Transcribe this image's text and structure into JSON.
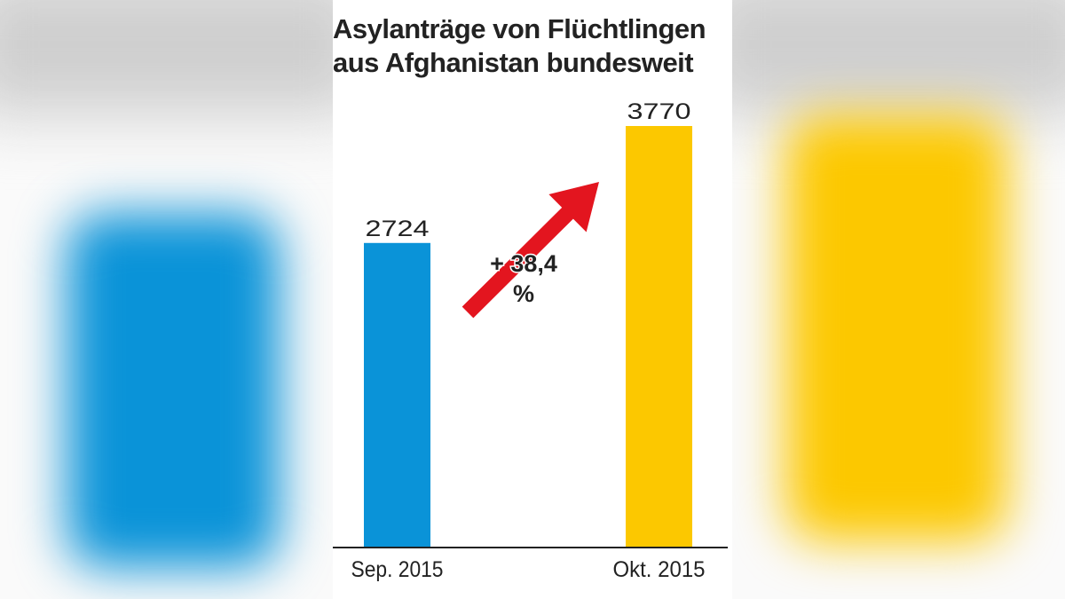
{
  "chart_data": {
    "type": "bar",
    "title_lines": [
      "Asylanträge von Flüchtlingen",
      "aus Afghanistan bundesweit"
    ],
    "categories": [
      "Sep. 2015",
      "Okt. 2015"
    ],
    "values": [
      2724,
      3770
    ],
    "data_labels": [
      "2724",
      "3770"
    ],
    "colors": [
      "#0a93d8",
      "#fcc800"
    ],
    "annotation": {
      "line1": "+ 38,4",
      "line2": "%",
      "arrow_color": "#e3151f"
    },
    "xlabel": "",
    "ylabel": "",
    "ylim": [
      0,
      3770
    ],
    "grid": false
  }
}
